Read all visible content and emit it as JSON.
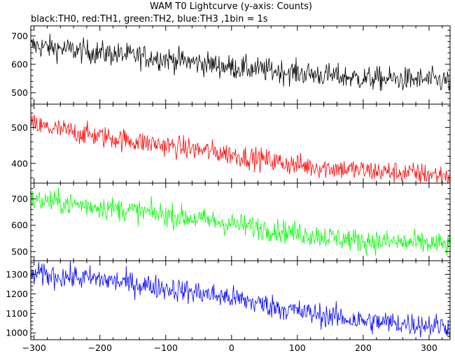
{
  "header": {
    "title": "WAM T0 Lightcurve (y-axis: Counts)",
    "subtitle": "black:TH0, red:TH1, green:TH2, blue:TH3 ,1bin = 1s"
  },
  "chart_data": {
    "type": "line",
    "title": "WAM T0 Lightcurve (y-axis: Counts)",
    "subtitle": "black:TH0, red:TH1, green:TH2, blue:TH3 ,1bin = 1s",
    "xlabel": "",
    "ylabel": "Counts",
    "xlim": [
      -305,
      332
    ],
    "x_ticks": [
      -300,
      -200,
      -100,
      0,
      100,
      200,
      300
    ],
    "bin_seconds": 1,
    "grid": false,
    "panels": [
      {
        "series_name": "TH0",
        "color": "#000000",
        "ylim": [
          460,
          735
        ],
        "y_ticks": [
          500,
          600,
          700
        ],
        "trend": {
          "x": [
            -300,
            -200,
            -100,
            0,
            100,
            200,
            300,
            330
          ],
          "y": [
            665,
            640,
            620,
            590,
            570,
            550,
            545,
            540
          ]
        },
        "noise_amplitude": 38
      },
      {
        "series_name": "TH1",
        "color": "#ff0000",
        "ylim": [
          345,
          565
        ],
        "y_ticks": [
          400,
          500
        ],
        "trend": {
          "x": [
            -300,
            -200,
            -100,
            0,
            100,
            200,
            300,
            330
          ],
          "y": [
            505,
            475,
            450,
            425,
            395,
            380,
            370,
            365
          ]
        },
        "noise_amplitude": 28
      },
      {
        "series_name": "TH2",
        "color": "#00ff00",
        "ylim": [
          465,
          760
        ],
        "y_ticks": [
          500,
          600,
          700
        ],
        "trend": {
          "x": [
            -300,
            -200,
            -100,
            0,
            100,
            200,
            300,
            330
          ],
          "y": [
            695,
            670,
            640,
            605,
            570,
            540,
            530,
            525
          ]
        },
        "noise_amplitude": 40
      },
      {
        "series_name": "TH3",
        "color": "#0000ff",
        "ylim": [
          965,
          1370
        ],
        "y_ticks": [
          1000,
          1100,
          1200,
          1300
        ],
        "trend": {
          "x": [
            -300,
            -200,
            -100,
            0,
            100,
            200,
            300,
            330
          ],
          "y": [
            1300,
            1275,
            1230,
            1180,
            1110,
            1060,
            1040,
            1035
          ]
        },
        "noise_amplitude": 55
      }
    ]
  }
}
